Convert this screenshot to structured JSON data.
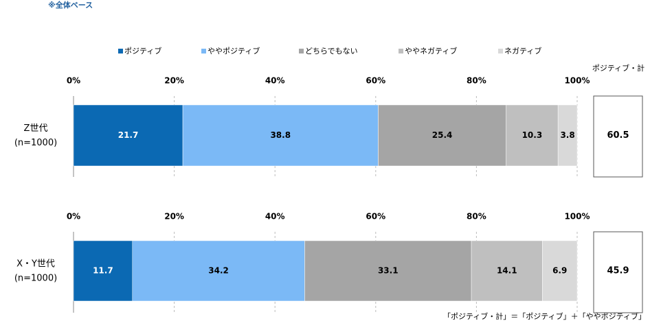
{
  "chart_data": {
    "type": "stacked-bar-horizontal",
    "note": "※全体ベース",
    "categories": [
      "Z世代",
      "X・Y世代"
    ],
    "category_notes": [
      "(n=1000)",
      "(n=1000)"
    ],
    "xlim": [
      0,
      100
    ],
    "xticks": [
      {
        "value": 0,
        "label": "0%"
      },
      {
        "value": 20,
        "label": "20%"
      },
      {
        "value": 40,
        "label": "40%"
      },
      {
        "value": 60,
        "label": "60%"
      },
      {
        "value": 80,
        "label": "80%"
      },
      {
        "value": 100,
        "label": "100%"
      }
    ],
    "grid": true,
    "series": [
      {
        "name": "ポジティブ",
        "color": "#0b69b3",
        "values": [
          21.7,
          11.7
        ]
      },
      {
        "name": "ややポジティブ",
        "color": "#7bb9f6",
        "values": [
          38.8,
          34.2
        ]
      },
      {
        "name": "どちらでもない",
        "color": "#a5a5a5",
        "values": [
          25.4,
          33.1
        ]
      },
      {
        "name": "ややネガティブ",
        "color": "#bfbfbf",
        "values": [
          10.3,
          14.1
        ]
      },
      {
        "name": "ネガティブ",
        "color": "#d9d9d9",
        "values": [
          3.8,
          6.9
        ]
      }
    ],
    "totals": {
      "title": "ポジティブ・計",
      "values": [
        60.5,
        45.9
      ]
    },
    "footnote": "「ポジティブ・計」＝「ポジティブ」＋「ややポジティブ」"
  }
}
